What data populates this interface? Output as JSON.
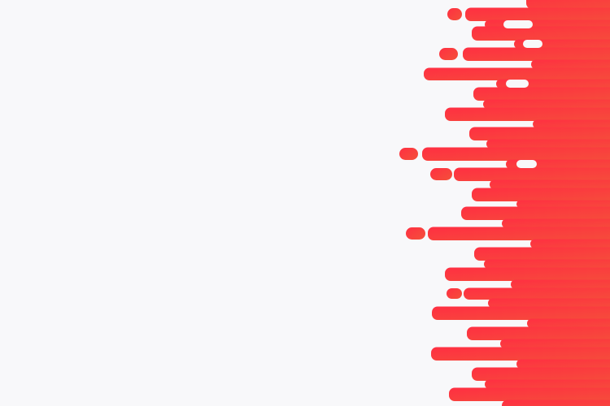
{
  "colors": {
    "background": "#f8f8fa",
    "accent_start": "#ff2f42",
    "accent_end": "#f4503a",
    "gap": "#f8f8fa"
  }
}
